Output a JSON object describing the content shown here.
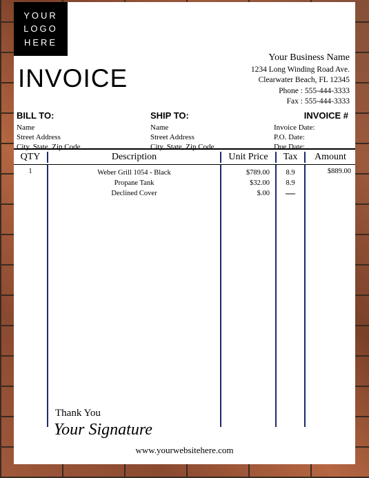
{
  "logo": {
    "l1": "YOUR",
    "l2": "LOGO",
    "l3": "HERE"
  },
  "business": {
    "name": "Your Business Name",
    "addr1": "1234 Long Winding Road Ave.",
    "addr2": "Clearwater Beach, FL 12345",
    "phone": "Phone : 555-444-3333",
    "fax": "Fax : 555-444-3333"
  },
  "title": "INVOICE",
  "bill": {
    "hd": "BILL TO:",
    "name": "Name",
    "street": "Street Address",
    "csz": "City, State, Zip Code"
  },
  "ship": {
    "hd": "SHIP TO:",
    "name": "Name",
    "street": "Street Address",
    "csz": "City, State, Zip Code"
  },
  "inv": {
    "hd": "INVOICE #",
    "date": "Invoice Date:",
    "po": "P.O. Date:",
    "due": "Due Date:"
  },
  "cols": {
    "qty": "QTY",
    "desc": "Description",
    "price": "Unit Price",
    "tax": "Tax",
    "amt": "Amount"
  },
  "row": {
    "qty": "1",
    "d1": "Weber Grill 1054 - Black",
    "d2": "Propane Tank",
    "d3": "Declined Cover",
    "p1": "$789.00",
    "p2": "$32.00",
    "p3": "$.00",
    "t1": "8.9",
    "t2": "8.9",
    "t3": "—",
    "amt": "$889.00"
  },
  "thank": "Thank You",
  "sig": "Your Signature",
  "website": "www.yourwebsitehere.com",
  "colors": {
    "divider": "#1a2a6c",
    "paper": "#ffffff",
    "text": "#000000"
  }
}
